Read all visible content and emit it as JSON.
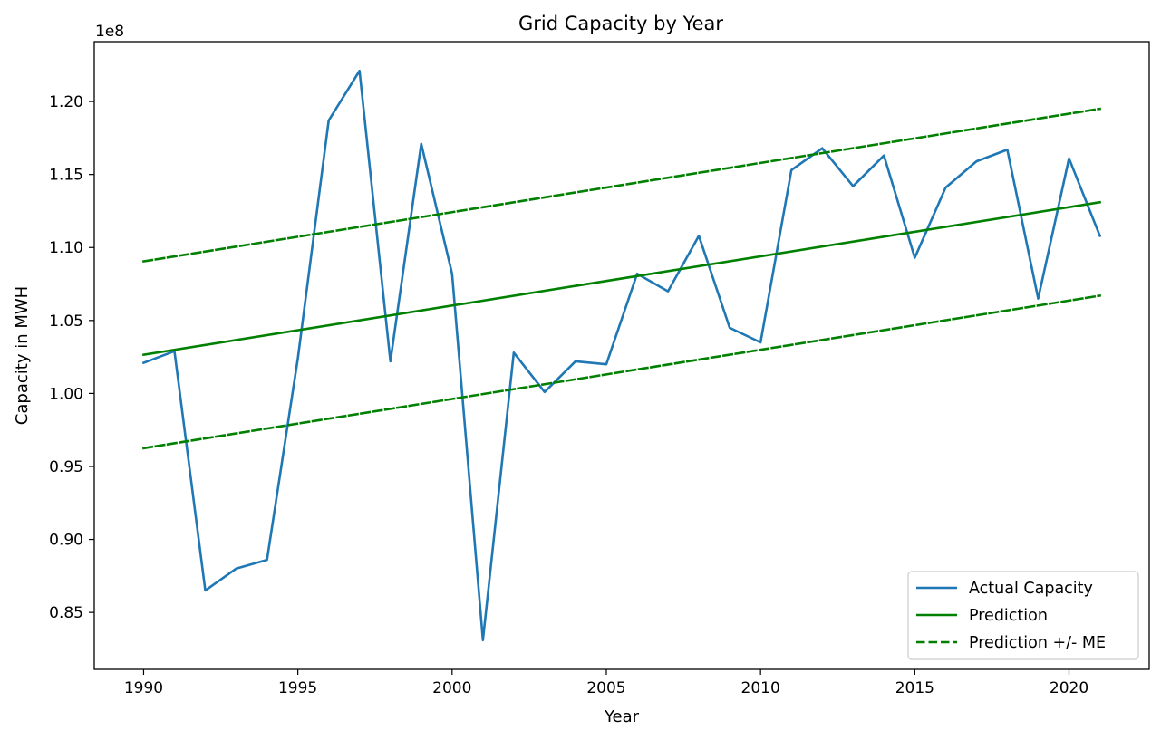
{
  "chart_data": {
    "type": "line",
    "title": "Grid Capacity by Year",
    "xlabel": "Year",
    "ylabel": "Capacity in MWH",
    "y_multiplier_label": "1e8",
    "xlim": [
      1988.4,
      2022.6
    ],
    "ylim": [
      0.811,
      1.241
    ],
    "x_ticks": [
      1990,
      1995,
      2000,
      2005,
      2010,
      2015,
      2020
    ],
    "y_ticks": [
      0.85,
      0.9,
      0.95,
      1.0,
      1.05,
      1.1,
      1.15,
      1.2
    ],
    "y_tick_labels": [
      "0.85",
      "0.90",
      "0.95",
      "1.00",
      "1.05",
      "1.10",
      "1.15",
      "1.20"
    ],
    "grid": false,
    "legend_placement": "lower-right",
    "x": [
      1990,
      1991,
      1992,
      1993,
      1994,
      1995,
      1996,
      1997,
      1998,
      1999,
      2000,
      2001,
      2002,
      2003,
      2004,
      2005,
      2006,
      2007,
      2008,
      2009,
      2010,
      2011,
      2012,
      2013,
      2014,
      2015,
      2016,
      2017,
      2018,
      2019,
      2020,
      2021
    ],
    "series": [
      {
        "name": "Actual Capacity",
        "color": "#1f77b4",
        "style": "solid",
        "values": [
          1.021,
          1.029,
          0.865,
          0.88,
          0.886,
          1.024,
          1.187,
          1.221,
          1.022,
          1.171,
          1.082,
          0.831,
          1.028,
          1.001,
          1.022,
          1.02,
          1.082,
          1.07,
          1.108,
          1.045,
          1.035,
          1.153,
          1.168,
          1.142,
          1.163,
          1.093,
          1.141,
          1.159,
          1.167,
          1.065,
          1.161,
          1.108
        ]
      },
      {
        "name": "Prediction",
        "color": "#008000",
        "style": "solid",
        "x": [
          1990,
          2021
        ],
        "values": [
          1.0265,
          1.131
        ]
      },
      {
        "name": "Prediction +/- ME",
        "color": "#008000",
        "style": "dashed",
        "x": [
          1990,
          2021
        ],
        "values": [
          1.0905,
          1.195
        ]
      },
      {
        "name": "",
        "legend": false,
        "color": "#008000",
        "style": "dashed",
        "x": [
          1990,
          2021
        ],
        "values": [
          0.9625,
          1.067
        ]
      }
    ]
  }
}
